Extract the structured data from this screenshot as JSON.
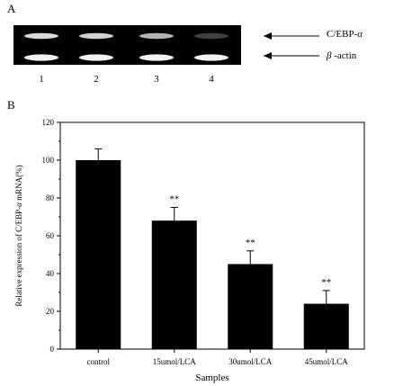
{
  "panel_a": {
    "label": "A",
    "lanes": [
      "1",
      "2",
      "3",
      "4"
    ],
    "bands": [
      {
        "name": "C/EBP-α",
        "label_prefix": "C/EBP-",
        "label_greek": "α",
        "intensity": [
          0.85,
          0.82,
          0.7,
          0.25
        ]
      },
      {
        "name": "β-actin",
        "label_greek": "β",
        "label_suffix": " -actin",
        "intensity": [
          0.95,
          0.95,
          0.95,
          0.95
        ]
      }
    ],
    "gel_color": "#000000",
    "band_color": "#ffffff"
  },
  "panel_b": {
    "label": "B"
  },
  "chart_data": {
    "type": "bar",
    "title": "",
    "xlabel": "Samples",
    "ylabel": "Relative expression of C/EBP-α mRNA(%)",
    "ylabel_parts": {
      "prefix": "Relative expression of C/EBP-",
      "greek": "α",
      "suffix": " mRNA(%)"
    },
    "categories": [
      "control",
      "15umol/LCA",
      "30umol/LCA",
      "45umol/LCA"
    ],
    "values": [
      100,
      68,
      45,
      24
    ],
    "errors": [
      6,
      7,
      7,
      7
    ],
    "annotations": [
      "",
      "**",
      "**",
      "**"
    ],
    "ylim": [
      0,
      120
    ],
    "yticks": [
      "0",
      "20",
      "40",
      "60",
      "80",
      "100",
      "120"
    ],
    "bar_color": "#000000",
    "grid": false
  }
}
